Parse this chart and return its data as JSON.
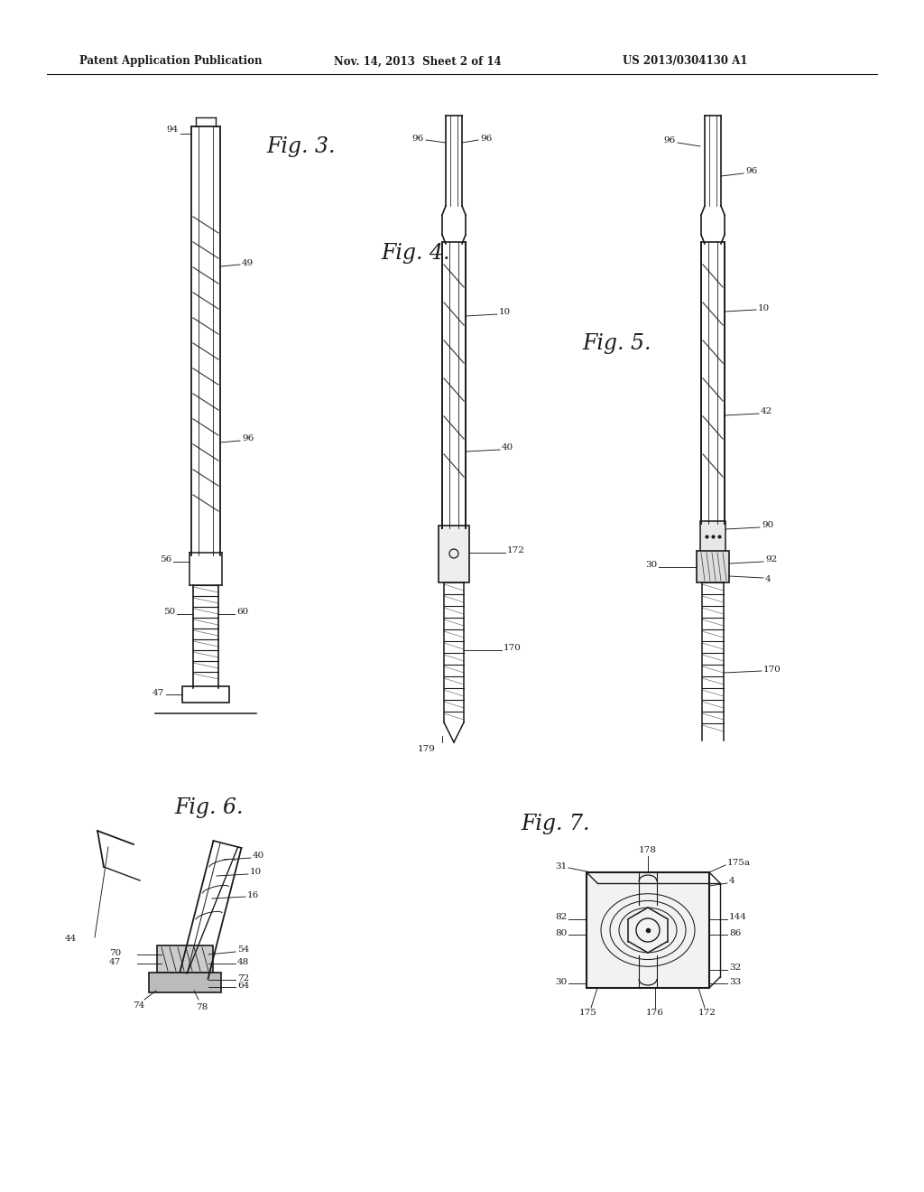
{
  "bg_color": "#ffffff",
  "header_text": "Patent Application Publication",
  "header_date": "Nov. 14, 2013  Sheet 2 of 14",
  "header_patent": "US 2013/0304130 A1",
  "fig3_label": "Fig. 3.",
  "fig4_label": "Fig. 4.",
  "fig5_label": "Fig. 5.",
  "fig6_label": "Fig. 6.",
  "fig7_label": "Fig. 7.",
  "line_color": "#1a1a1a",
  "annotation_color": "#1a1a1a"
}
